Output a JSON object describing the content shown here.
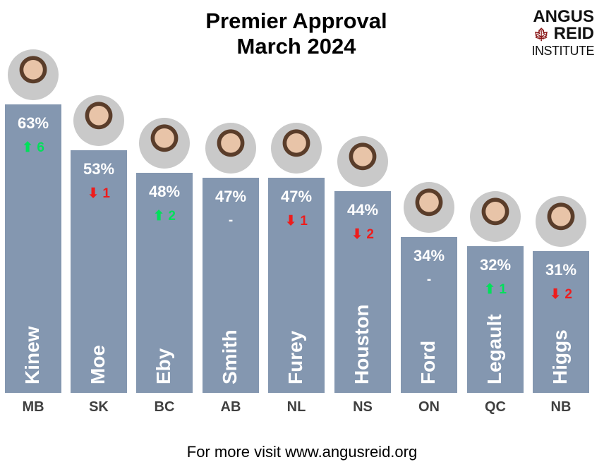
{
  "chart_data": {
    "type": "bar",
    "title": "Premier Approval",
    "subtitle": "March 2024",
    "categories": [
      "MB",
      "SK",
      "BC",
      "AB",
      "NL",
      "NS",
      "ON",
      "QC",
      "NB"
    ],
    "premiers": [
      "Kinew",
      "Moe",
      "Eby",
      "Smith",
      "Furey",
      "Houston",
      "Ford",
      "Legault",
      "Higgs"
    ],
    "values": [
      63,
      53,
      48,
      47,
      47,
      44,
      34,
      32,
      31
    ],
    "value_labels": [
      "63%",
      "53%",
      "48%",
      "47%",
      "47%",
      "44%",
      "34%",
      "32%",
      "31%"
    ],
    "changes": [
      {
        "dir": "up",
        "value": "6"
      },
      {
        "dir": "down",
        "value": "1"
      },
      {
        "dir": "up",
        "value": "2"
      },
      {
        "dir": "none",
        "value": "-"
      },
      {
        "dir": "down",
        "value": "1"
      },
      {
        "dir": "down",
        "value": "2"
      },
      {
        "dir": "none",
        "value": "-"
      },
      {
        "dir": "up",
        "value": "1"
      },
      {
        "dir": "down",
        "value": "2"
      }
    ],
    "ylim": [
      0,
      63
    ],
    "grid": false,
    "colors": {
      "bar": "#8497b0",
      "up": "#00e05a",
      "down": "#ee1c1c"
    }
  },
  "logo": {
    "line1": "ANGUS",
    "line2": "REID",
    "line3": "INSTITUTE"
  },
  "footer": "For more visit www.angusreid.org"
}
